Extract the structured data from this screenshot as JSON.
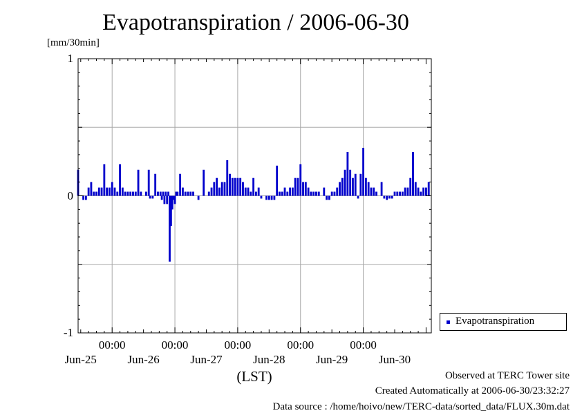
{
  "colors": {
    "bar": "#0000cc",
    "grid": "#a8a8a8",
    "axis": "#000000"
  },
  "chart_data": {
    "type": "bar",
    "title": "Evapotranspiration / 2006-06-30",
    "ylabel": "[mm/30min]",
    "xlabel": "(LST)",
    "ylim": [
      -1,
      1
    ],
    "yticks": [
      {
        "value": 1,
        "label": "1"
      },
      {
        "value": 0,
        "label": "0"
      },
      {
        "value": -1,
        "label": "-1"
      }
    ],
    "grid": true,
    "x_unit": "hours from 2006-06-24 00:00 LST",
    "xlim": [
      11,
      146
    ],
    "xticks": [
      {
        "hours": 24,
        "time": "00:00",
        "day": "Jun-25"
      },
      {
        "hours": 48,
        "time": "00:00",
        "day": "Jun-26"
      },
      {
        "hours": 72,
        "time": "00:00",
        "day": "Jun-27"
      },
      {
        "hours": 96,
        "time": "00:00",
        "day": "Jun-28"
      },
      {
        "hours": 120,
        "time": "00:00",
        "day": "Jun-29"
      }
    ],
    "series": [
      {
        "name": "Evapotranspiration",
        "x": [
          11,
          13,
          14,
          15,
          16,
          17,
          18,
          19,
          20,
          21,
          22,
          23,
          24,
          25,
          26,
          27,
          28,
          29,
          30,
          31,
          32,
          33,
          34,
          35,
          37,
          38,
          38.5,
          39.5,
          40.5,
          41.5,
          42.5,
          43,
          43.5,
          44,
          44.5,
          45,
          45.5,
          46,
          46.5,
          47,
          47.5,
          48,
          48.5,
          49,
          50,
          51,
          52,
          53,
          54,
          55,
          57,
          59,
          61,
          62,
          63,
          64,
          65,
          66,
          67,
          68,
          69,
          70,
          71,
          72,
          73,
          74,
          75,
          76,
          77,
          78,
          79,
          80,
          81,
          83,
          84,
          85,
          86,
          87,
          88,
          89,
          90,
          91,
          92,
          93,
          94,
          95,
          96,
          97,
          98,
          99,
          100,
          101,
          102,
          103,
          105,
          106,
          107,
          108,
          109,
          110,
          111,
          112,
          113,
          114,
          115,
          116,
          117,
          118,
          119,
          120,
          121,
          122,
          123,
          124,
          125,
          127,
          128,
          129,
          130,
          131,
          132,
          133,
          134,
          135,
          136,
          137,
          138,
          139,
          140,
          141,
          142,
          143,
          144,
          145
        ],
        "values": [
          0.19,
          -0.03,
          -0.03,
          0.06,
          0.1,
          0.03,
          0.03,
          0.06,
          0.06,
          0.23,
          0.06,
          0.06,
          0.1,
          0.06,
          0.03,
          0.23,
          0.06,
          0.03,
          0.03,
          0.03,
          0.03,
          0.03,
          0.19,
          0.03,
          0.03,
          0.19,
          -0.02,
          -0.02,
          0.16,
          0.03,
          0.03,
          -0.03,
          0.03,
          -0.06,
          0.03,
          -0.06,
          0.03,
          -0.48,
          -0.22,
          -0.1,
          -0.03,
          -0.06,
          0.03,
          0.03,
          0.16,
          0.06,
          0.03,
          0.03,
          0.03,
          0.03,
          -0.03,
          0.19,
          0.03,
          0.06,
          0.1,
          0.13,
          0.06,
          0.1,
          0.1,
          0.26,
          0.16,
          0.13,
          0.13,
          0.13,
          0.13,
          0.1,
          0.06,
          0.06,
          0.03,
          0.13,
          0.03,
          0.06,
          -0.02,
          -0.03,
          -0.03,
          -0.03,
          -0.03,
          0.22,
          0.03,
          0.03,
          0.06,
          0.03,
          0.06,
          0.06,
          0.13,
          0.13,
          0.23,
          0.1,
          0.1,
          0.06,
          0.03,
          0.03,
          0.03,
          0.03,
          0.06,
          -0.03,
          -0.03,
          0.03,
          0.03,
          0.06,
          0.1,
          0.13,
          0.19,
          0.32,
          0.19,
          0.13,
          0.16,
          -0.02,
          0.16,
          0.35,
          0.13,
          0.1,
          0.06,
          0.06,
          0.03,
          0.1,
          -0.02,
          -0.03,
          -0.02,
          -0.02,
          0.03,
          0.03,
          0.03,
          0.03,
          0.06,
          0.06,
          0.13,
          0.32,
          0.1,
          0.06,
          0.03,
          0.06,
          0.06,
          0.1
        ]
      }
    ]
  },
  "legend": {
    "label": "Evapotranspiration",
    "position": "right"
  },
  "footer": {
    "line1": "Observed at TERC Tower site",
    "line2": "Created Automatically at 2006-06-30/23:32:27",
    "line3": "Data source : /home/hoivo/new/TERC-data/sorted_data/FLUX.30m.dat"
  }
}
